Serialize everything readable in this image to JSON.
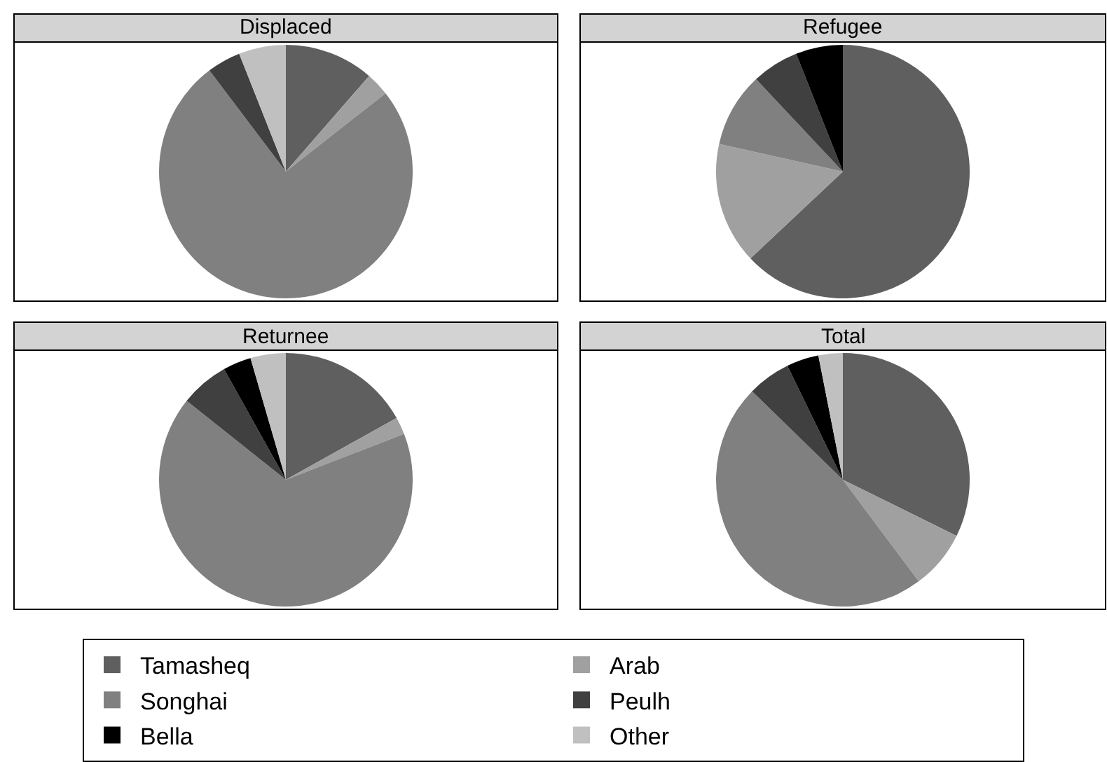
{
  "chart_data": [
    {
      "type": "pie",
      "title": "Displaced",
      "categories": [
        "Tamasheq",
        "Arab",
        "Songhai",
        "Peulh",
        "Bella",
        "Other"
      ],
      "values": [
        11.4,
        3,
        75.3,
        4.3,
        0,
        6
      ],
      "colors": [
        "#5f5f5f",
        "#a0a0a0",
        "#808080",
        "#404040",
        "#000000",
        "#c0c0c0"
      ],
      "legend": "bottom"
    },
    {
      "type": "pie",
      "title": "Refugee",
      "categories": [
        null,
        null,
        null,
        null,
        null,
        null
      ],
      "values": [
        63,
        15.5,
        9.5,
        6,
        6,
        0
      ],
      "colors": [
        "#5f5f5f",
        "#a0a0a0",
        "#808080",
        "#404040",
        "#000000",
        "#c0c0c0"
      ]
    },
    {
      "type": "pie",
      "title": "Returnee",
      "categories": [
        null,
        null,
        null,
        null,
        null,
        null
      ],
      "values": [
        16.9,
        2.2,
        66.6,
        6.2,
        3.6,
        4.5
      ],
      "colors": [
        "#5f5f5f",
        "#a0a0a0",
        "#808080",
        "#404040",
        "#000000",
        "#c0c0c0"
      ]
    },
    {
      "type": "pie",
      "title": "Total",
      "categories": [
        null,
        null,
        null,
        null,
        null,
        null
      ],
      "values": [
        32.3,
        7.5,
        47.5,
        5.5,
        4.1,
        3.1
      ],
      "colors": [
        "#5f5f5f",
        "#a0a0a0",
        "#808080",
        "#404040",
        "#000000",
        "#c0c0c0"
      ]
    }
  ]
}
